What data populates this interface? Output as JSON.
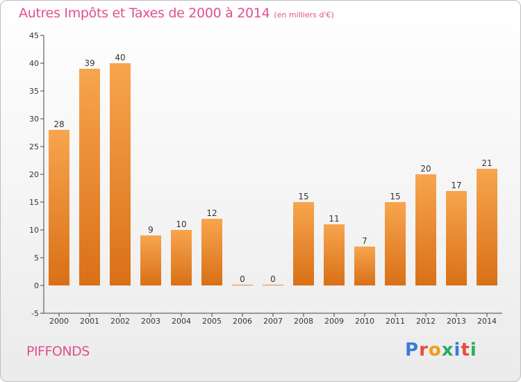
{
  "title": {
    "main": "Autres Impôts et Taxes de 2000 à 2014",
    "unit": "(en milliers d'€)"
  },
  "commune": "PIFFONDS",
  "logo": {
    "name": "proxiti-logo",
    "letters": [
      {
        "char": "P",
        "color": "#3a7bd5"
      },
      {
        "char": "r",
        "color": "#e74c3c"
      },
      {
        "char": "o",
        "color": "#f39c12"
      },
      {
        "char": "x",
        "color": "#27ae60"
      },
      {
        "char": "i",
        "color": "#3a7bd5"
      },
      {
        "char": "t",
        "color": "#e74c3c"
      },
      {
        "char": "i",
        "color": "#27ae60"
      }
    ]
  },
  "colors": {
    "bar_light": "#f7a54e",
    "bar_dark": "#d97017",
    "title": "#e0508f"
  },
  "chart_data": {
    "type": "bar",
    "categories": [
      "2000",
      "2001",
      "2002",
      "2003",
      "2004",
      "2005",
      "2006",
      "2007",
      "2008",
      "2009",
      "2010",
      "2011",
      "2012",
      "2013",
      "2014"
    ],
    "values": [
      28,
      39,
      40,
      9,
      10,
      12,
      0,
      0,
      15,
      11,
      7,
      15,
      20,
      17,
      21
    ],
    "title": "Autres Impôts et Taxes de 2000 à 2014",
    "xlabel": "",
    "ylabel": "",
    "ylim": [
      -5,
      45
    ],
    "yticks": [
      -5,
      0,
      5,
      10,
      15,
      20,
      25,
      30,
      35,
      40,
      45
    ],
    "grid": false,
    "data_labels": true
  }
}
